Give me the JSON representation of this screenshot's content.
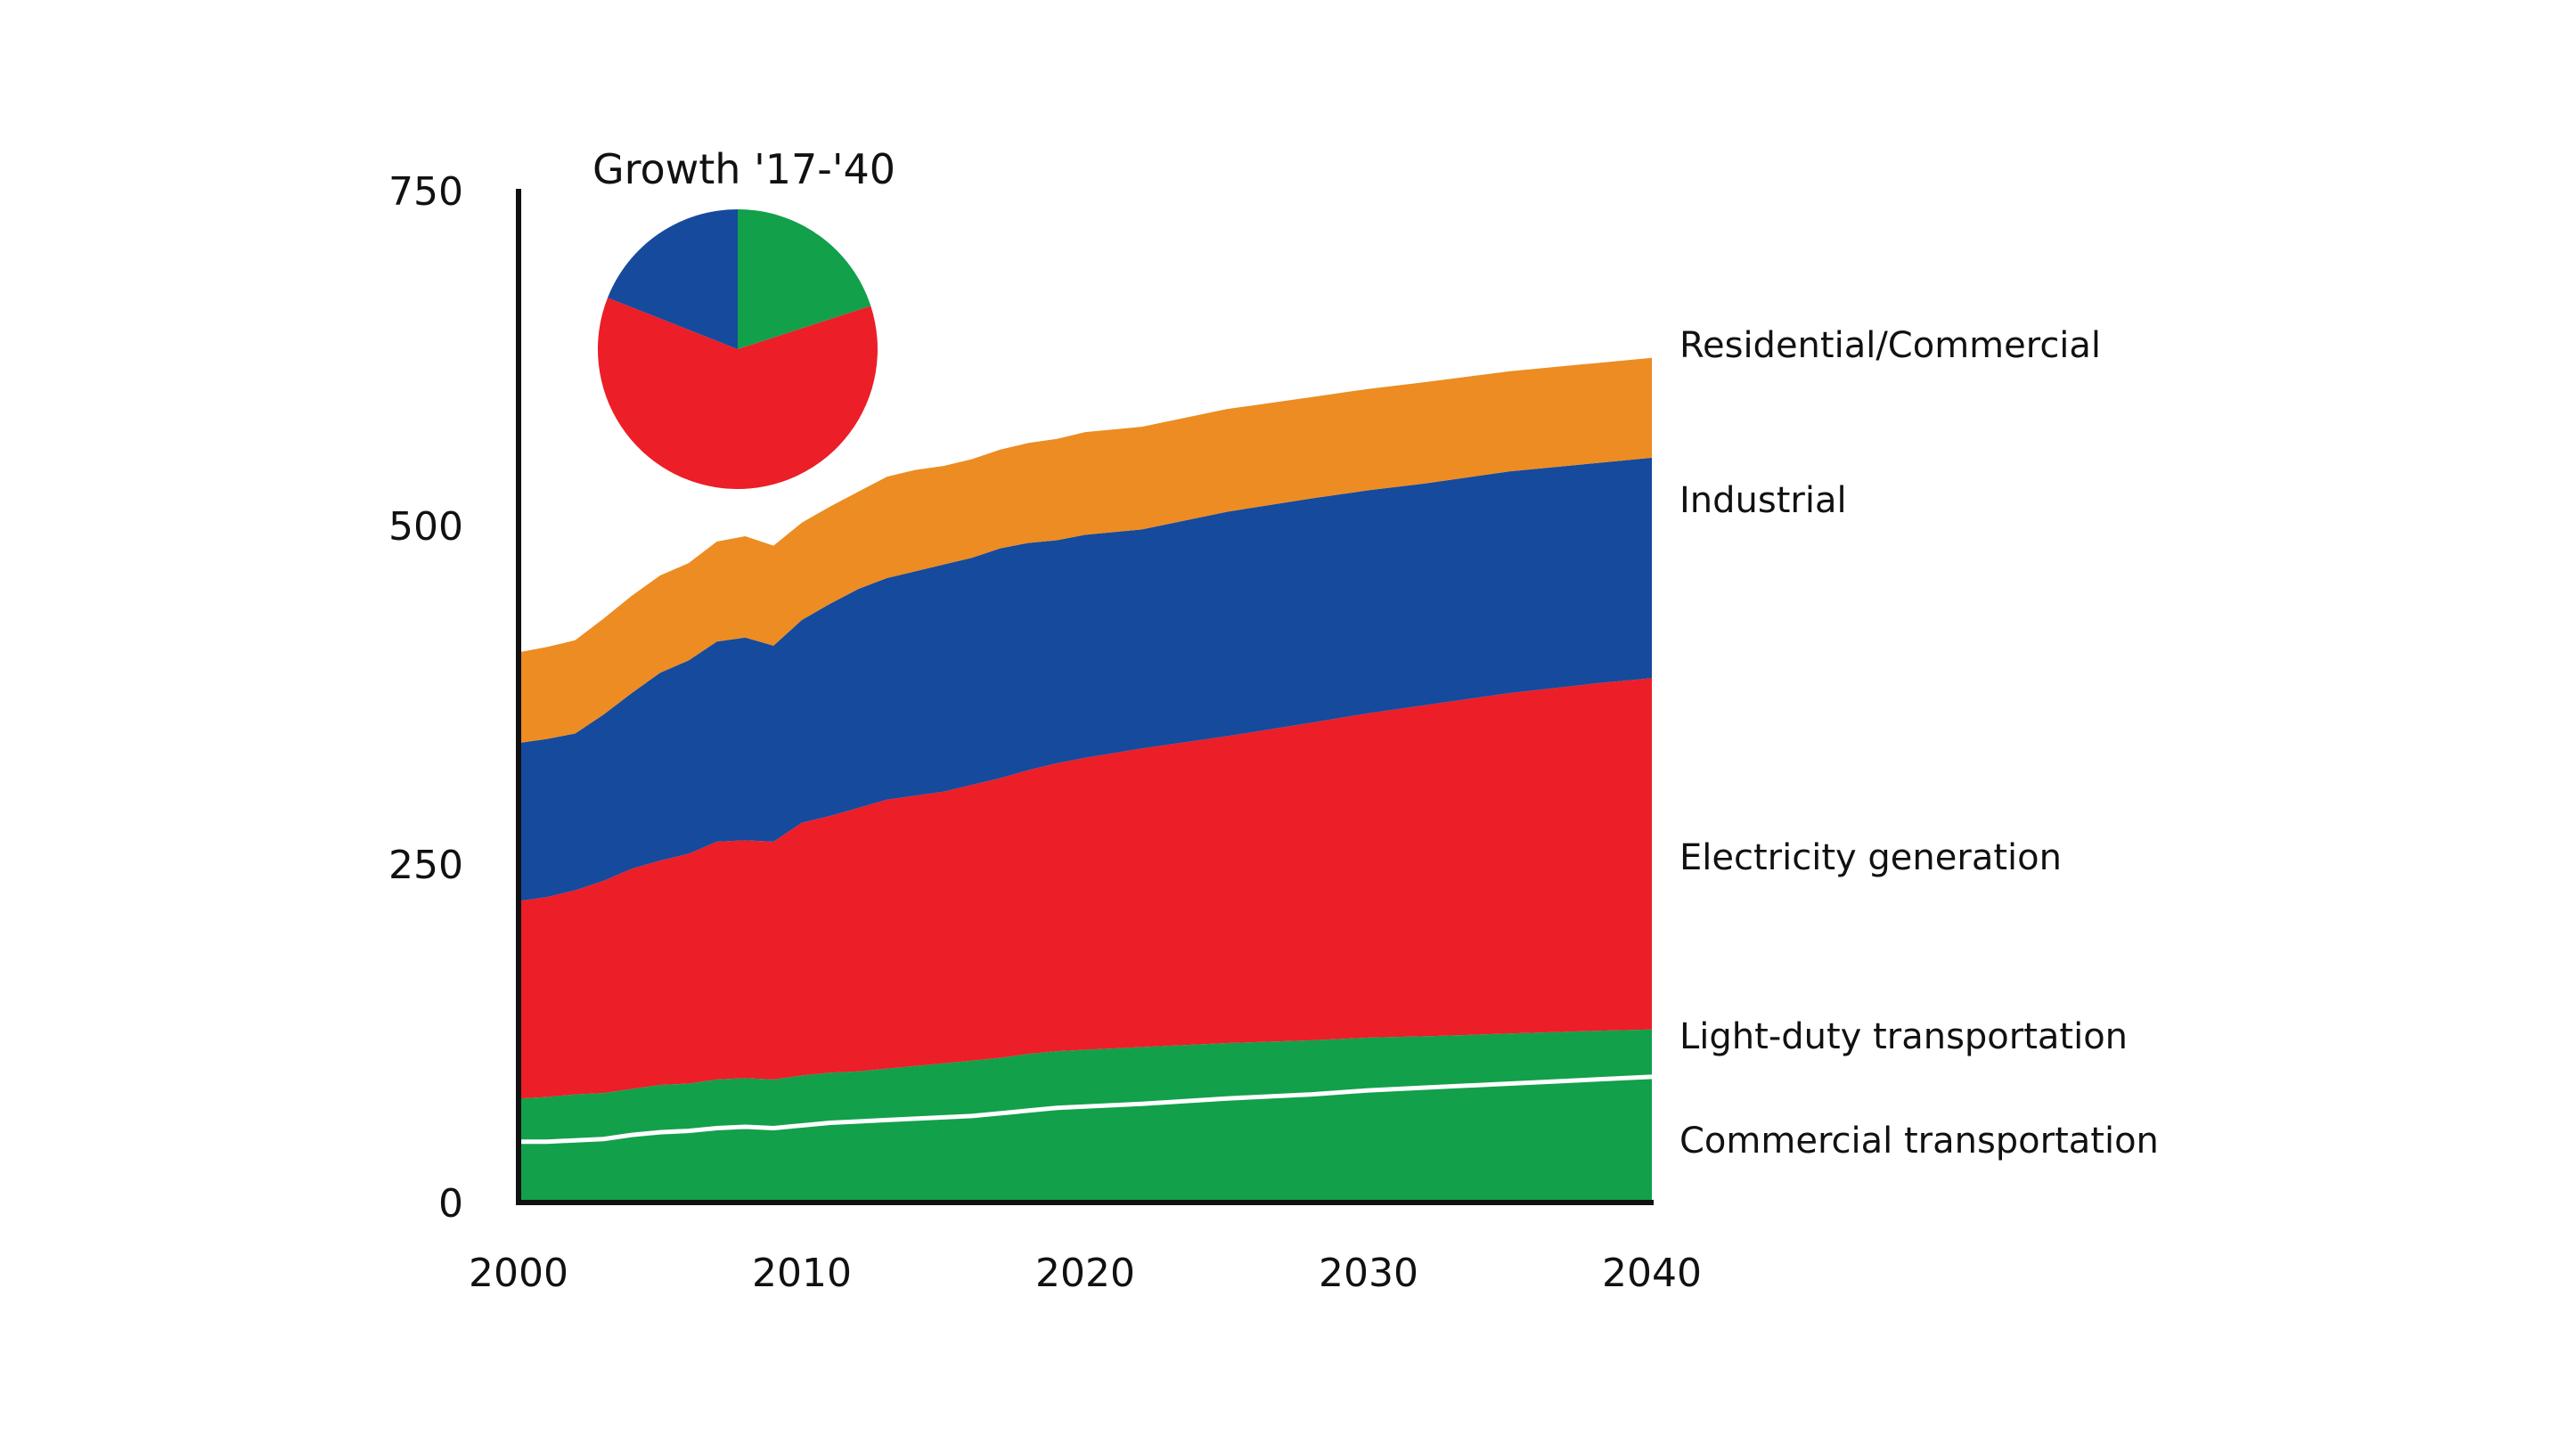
{
  "chart_data": {
    "type": "area",
    "stacked": true,
    "ylim": [
      0,
      750
    ],
    "xlim": [
      2000,
      2040
    ],
    "x_ticks": [
      "2000",
      "2010",
      "2020",
      "2030",
      "2040"
    ],
    "y_ticks": [
      "0",
      "250",
      "500",
      "750"
    ],
    "x": [
      2000,
      2001,
      2002,
      2003,
      2004,
      2005,
      2006,
      2007,
      2008,
      2009,
      2010,
      2011,
      2012,
      2013,
      2014,
      2015,
      2016,
      2017,
      2018,
      2019,
      2020,
      2022,
      2025,
      2028,
      2030,
      2032,
      2035,
      2038,
      2040
    ],
    "series": [
      {
        "name": "Commercial transportation",
        "color": "#12a04b",
        "values": [
          45,
          45,
          46,
          47,
          50,
          52,
          53,
          55,
          56,
          55,
          57,
          59,
          60,
          61,
          62,
          63,
          64,
          66,
          68,
          70,
          71,
          73,
          77,
          80,
          83,
          85,
          88,
          91,
          93
        ]
      },
      {
        "name": "Light-duty transportation",
        "color": "#12a04b",
        "values": [
          32,
          33,
          34,
          34,
          34,
          35,
          35,
          36,
          36,
          36,
          37,
          37,
          37,
          38,
          39,
          40,
          41,
          41,
          42,
          42,
          42,
          42,
          41,
          40,
          39,
          38,
          37,
          36,
          35
        ]
      },
      {
        "name": "Electricity generation",
        "color": "#ec1e27",
        "values": [
          146,
          148,
          151,
          157,
          163,
          166,
          170,
          176,
          176,
          176,
          187,
          190,
          195,
          199,
          200,
          201,
          204,
          207,
          210,
          213,
          216,
          221,
          227,
          235,
          240,
          245,
          252,
          257,
          260
        ]
      },
      {
        "name": "Industrial",
        "color": "#164a9c",
        "values": [
          117,
          117,
          116,
          123,
          130,
          139,
          143,
          148,
          150,
          145,
          150,
          157,
          162,
          164,
          166,
          168,
          168,
          170,
          168,
          165,
          165,
          162,
          166,
          166,
          165,
          164,
          164,
          163,
          163
        ]
      },
      {
        "name": "Residential/Commercial",
        "color": "#ec8c22",
        "values": [
          67,
          68,
          69,
          71,
          72,
          72,
          72,
          74,
          75,
          74,
          72,
          72,
          72,
          75,
          75,
          73,
          73,
          73,
          74,
          75,
          76,
          76,
          76,
          75,
          75,
          75,
          74,
          74,
          74
        ]
      }
    ],
    "divider_line": {
      "color": "#ffffff"
    },
    "pie": {
      "title": "Growth '17-'40",
      "slices": [
        {
          "color": "#12a04b",
          "value": 20
        },
        {
          "color": "#ec1e27",
          "value": 61
        },
        {
          "color": "#164a9c",
          "value": 19
        }
      ]
    }
  }
}
